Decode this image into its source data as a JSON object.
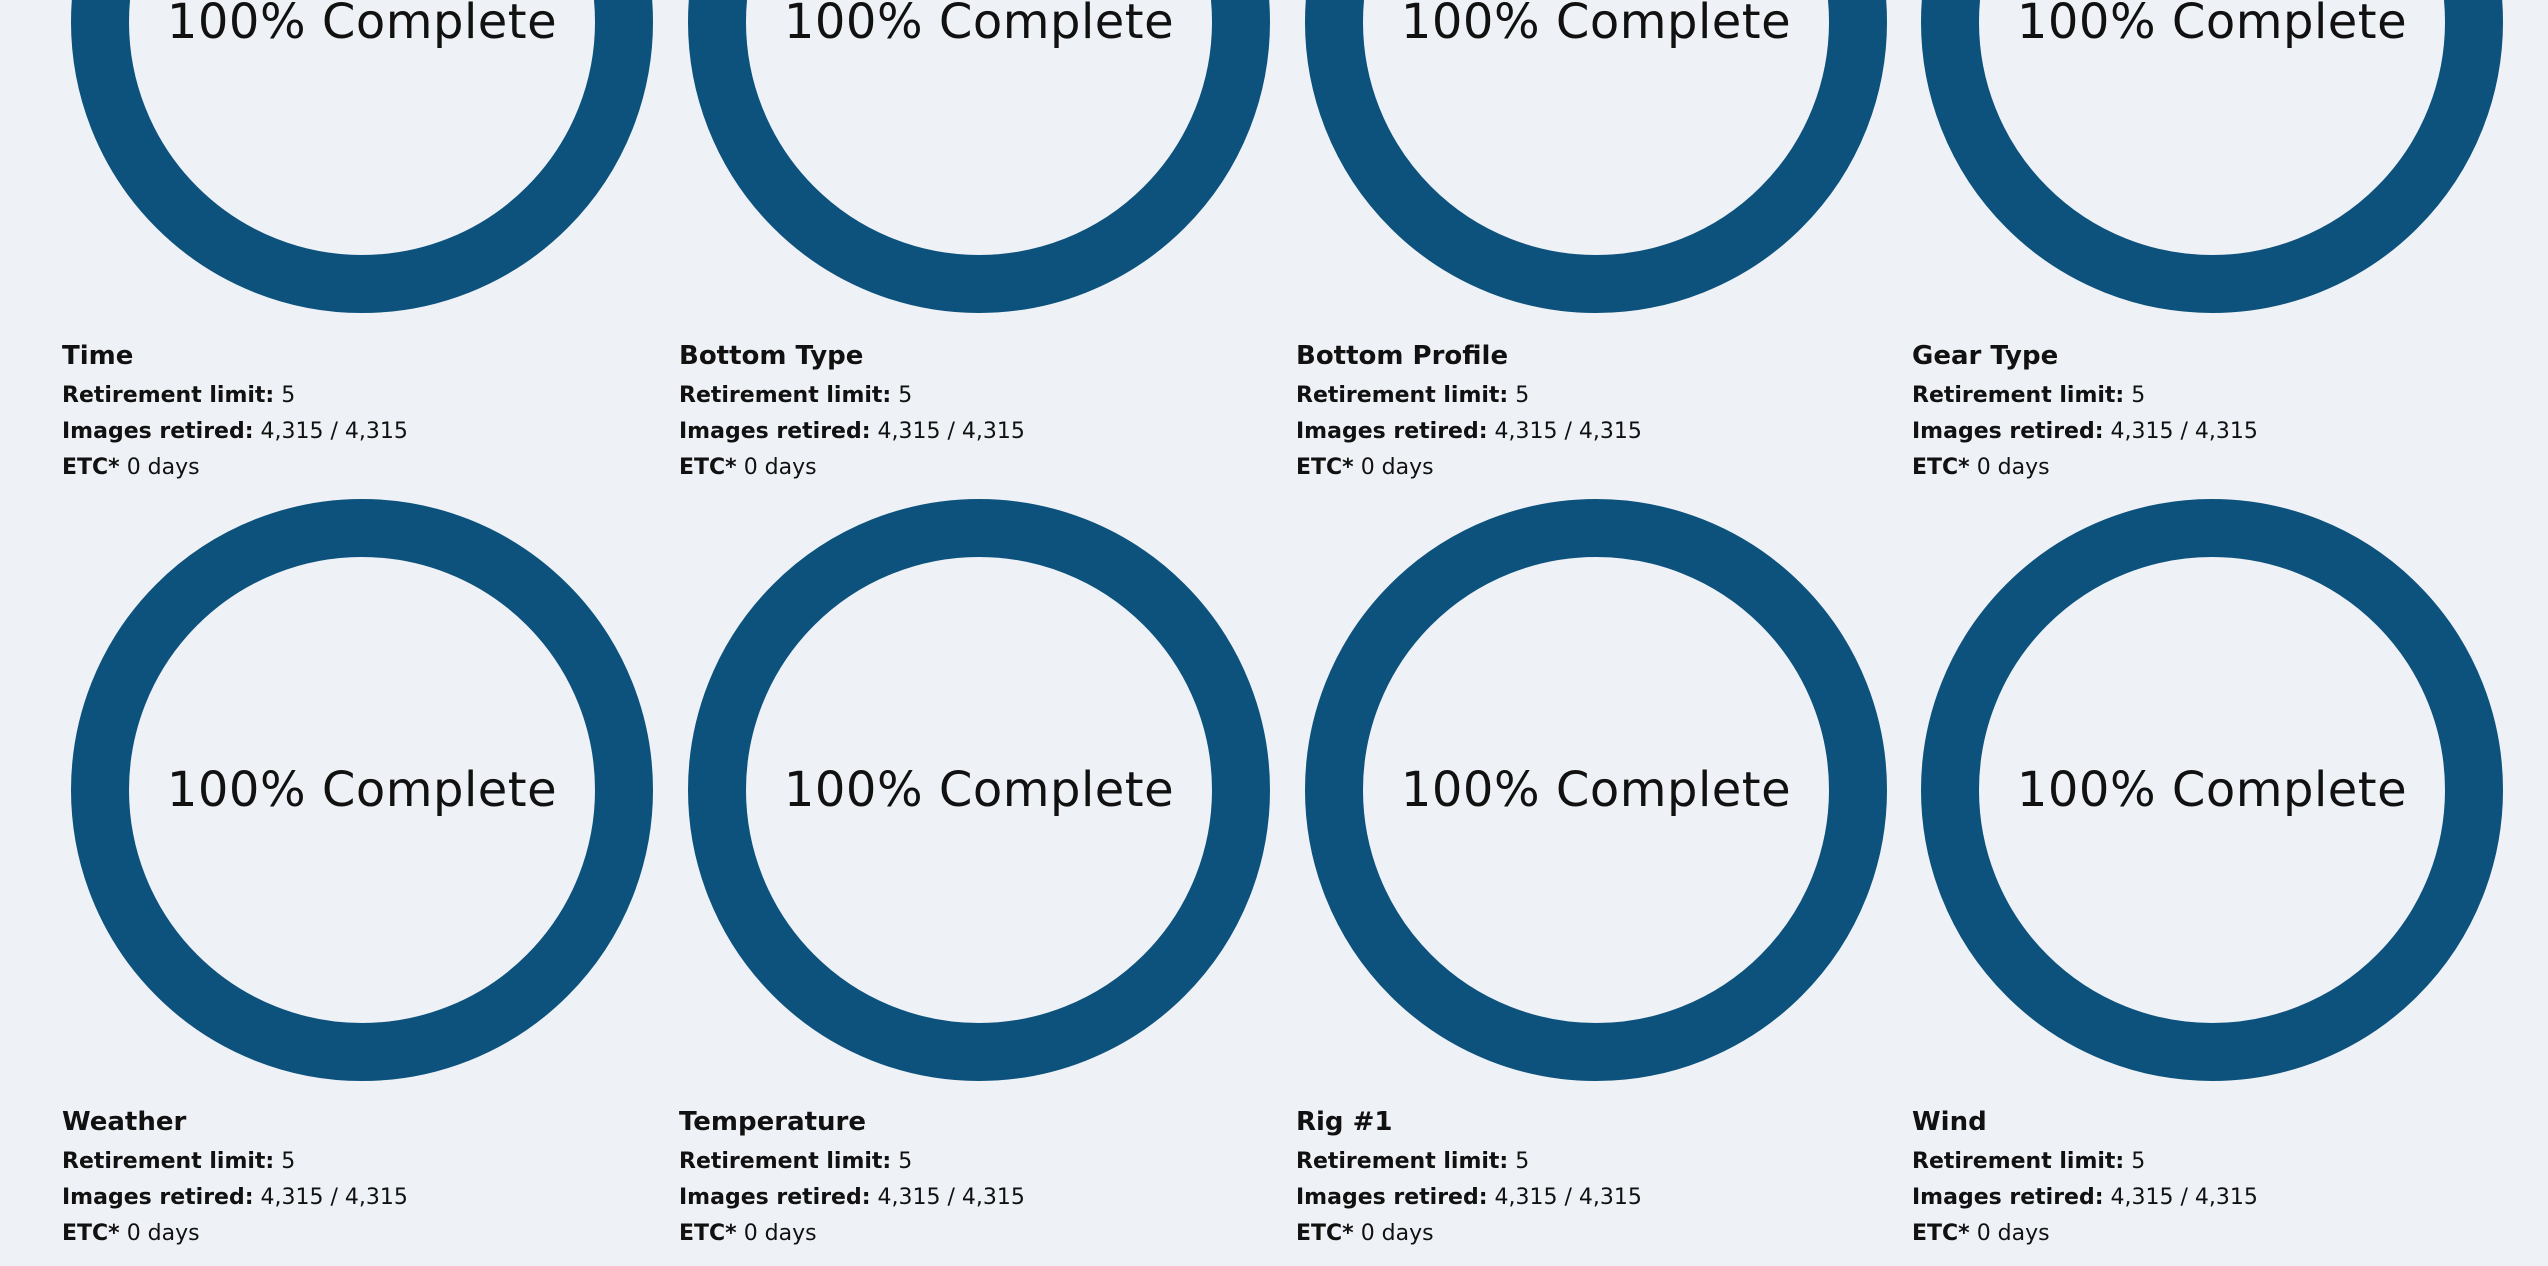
{
  "accent_color": "#0c527d",
  "background_color": "#eef1f6",
  "labels": {
    "retirement": "Retirement limit:",
    "retired": "Images retired:",
    "etc": "ETC*"
  },
  "tasks": [
    {
      "title": "Time",
      "progress_percent": 100,
      "complete_text": "100% Complete",
      "retirement_limit": "5",
      "images_retired": "4,315 / 4,315",
      "etc": "0 days"
    },
    {
      "title": "Bottom Type",
      "progress_percent": 100,
      "complete_text": "100% Complete",
      "retirement_limit": "5",
      "images_retired": "4,315 / 4,315",
      "etc": "0 days"
    },
    {
      "title": "Bottom Profile",
      "progress_percent": 100,
      "complete_text": "100% Complete",
      "retirement_limit": "5",
      "images_retired": "4,315 / 4,315",
      "etc": "0 days"
    },
    {
      "title": "Gear Type",
      "progress_percent": 100,
      "complete_text": "100% Complete",
      "retirement_limit": "5",
      "images_retired": "4,315 / 4,315",
      "etc": "0 days"
    },
    {
      "title": "Weather",
      "progress_percent": 100,
      "complete_text": "100% Complete",
      "retirement_limit": "5",
      "images_retired": "4,315 / 4,315",
      "etc": "0 days"
    },
    {
      "title": "Temperature",
      "progress_percent": 100,
      "complete_text": "100% Complete",
      "retirement_limit": "5",
      "images_retired": "4,315 / 4,315",
      "etc": "0 days"
    },
    {
      "title": "Rig #1",
      "progress_percent": 100,
      "complete_text": "100% Complete",
      "retirement_limit": "5",
      "images_retired": "4,315 / 4,315",
      "etc": "0 days"
    },
    {
      "title": "Wind",
      "progress_percent": 100,
      "complete_text": "100% Complete",
      "retirement_limit": "5",
      "images_retired": "4,315 / 4,315",
      "etc": "0 days"
    }
  ]
}
